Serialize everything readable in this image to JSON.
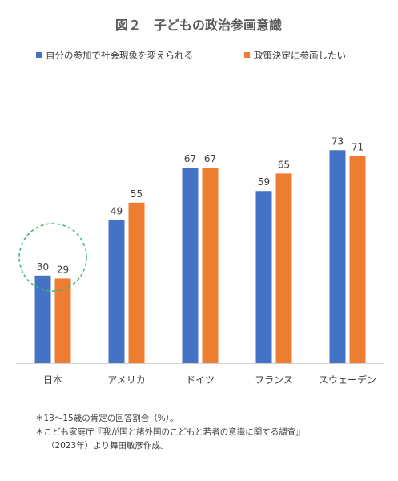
{
  "chart_data": {
    "type": "bar",
    "title": "図２　子どもの政治参画意識",
    "categories": [
      "日本",
      "アメリカ",
      "ドイツ",
      "フランス",
      "スウェーデン"
    ],
    "series": [
      {
        "name": "自分の参加で社会現象を変えられる",
        "values": [
          30,
          49,
          67,
          59,
          73
        ]
      },
      {
        "name": "政策決定に参画したい",
        "values": [
          29,
          55,
          67,
          65,
          71
        ]
      }
    ],
    "ylim": [
      0,
      100
    ],
    "grid": false,
    "legend_position": "top",
    "annotation": "highlight-circle-japan"
  },
  "colors": {
    "series1": "#4472C4",
    "series2": "#ED7D31",
    "highlight": "#3CB371",
    "text": "#404040",
    "axis": "#D0D0D0"
  },
  "notes": {
    "line1": "＊13〜15歳の肯定の回答割合（%）。",
    "line2": "＊こども家庭庁『我が国と諸外国のこどもと若者の意識に関する調査』",
    "line3": "（2023年）より舞田敏彦作成。"
  }
}
